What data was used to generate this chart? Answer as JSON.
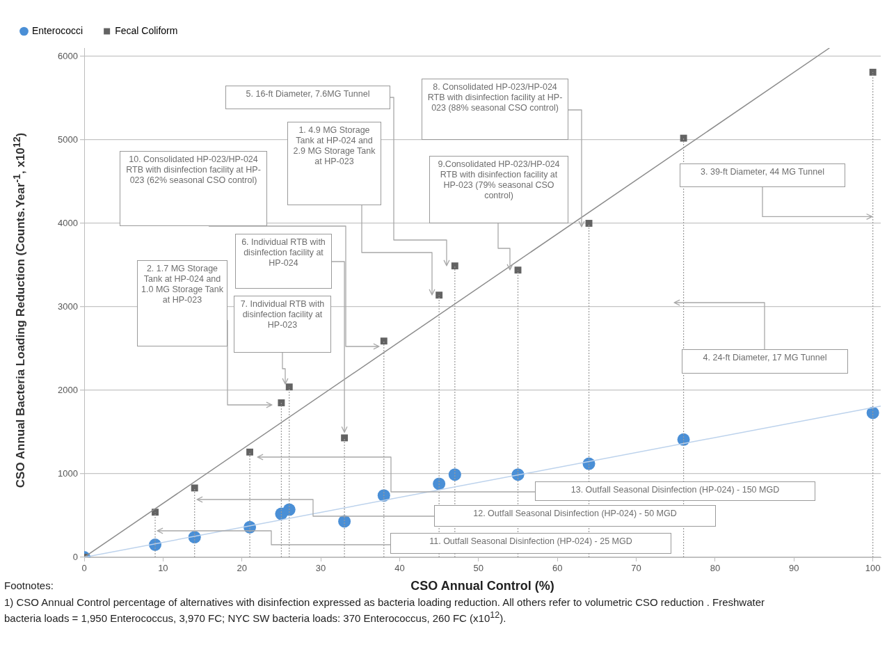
{
  "chart_data": {
    "type": "scatter",
    "xlabel": "CSO Annual Control (%)",
    "ylabel": "CSO Annual Bacteria Loading Reduction (Counts.Year$^{-1}$, x10$^{12}$)",
    "x": [
      0,
      9,
      14,
      21,
      25,
      26,
      33,
      38,
      45,
      47,
      55,
      64,
      76,
      100
    ],
    "series": [
      {
        "name": "Enterococci",
        "color": "#4a8fd6",
        "marker": "circle",
        "values": [
          0,
          150,
          240,
          360,
          520,
          570,
          430,
          740,
          880,
          990,
          990,
          1120,
          1410,
          1730
        ]
      },
      {
        "name": "Fecal Coliform",
        "color": "#636363",
        "marker": "square",
        "values": [
          0,
          540,
          830,
          1260,
          1850,
          2040,
          1430,
          2590,
          3140,
          3490,
          3440,
          4000,
          5020,
          5810
        ]
      },
      {
        "type": "line",
        "color": "#bcd2ec",
        "marker": "none",
        "x": [
          0,
          101
        ],
        "values": [
          0,
          1810
        ]
      },
      {
        "type": "line",
        "color": "#8c8c8c",
        "marker": "none",
        "x": [
          0,
          94.5
        ],
        "values": [
          0,
          6100
        ]
      },
      {
        "type": "line",
        "color": "#9a9a9a",
        "marker": "none",
        "line_style": "dotted",
        "x": [
          9,
          9
        ],
        "values": [
          0,
          540
        ]
      },
      {
        "type": "line",
        "color": "#9a9a9a",
        "marker": "none",
        "line_style": "dotted",
        "x": [
          14,
          14
        ],
        "values": [
          0,
          830
        ]
      },
      {
        "type": "line",
        "color": "#9a9a9a",
        "marker": "none",
        "line_style": "dotted",
        "x": [
          21,
          21
        ],
        "values": [
          0,
          1260
        ]
      },
      {
        "type": "line",
        "color": "#9a9a9a",
        "marker": "none",
        "line_style": "dotted",
        "x": [
          25,
          25
        ],
        "values": [
          0,
          1850
        ]
      },
      {
        "type": "line",
        "color": "#9a9a9a",
        "marker": "none",
        "line_style": "dotted",
        "x": [
          26,
          26
        ],
        "values": [
          0,
          2040
        ]
      },
      {
        "type": "line",
        "color": "#9a9a9a",
        "marker": "none",
        "line_style": "dotted",
        "x": [
          33,
          33
        ],
        "values": [
          0,
          1430
        ]
      },
      {
        "type": "line",
        "color": "#9a9a9a",
        "marker": "none",
        "line_style": "dotted",
        "x": [
          38,
          38
        ],
        "values": [
          0,
          2590
        ]
      },
      {
        "type": "line",
        "color": "#9a9a9a",
        "marker": "none",
        "line_style": "dotted",
        "x": [
          45,
          45
        ],
        "values": [
          0,
          3140
        ]
      },
      {
        "type": "line",
        "color": "#9a9a9a",
        "marker": "none",
        "line_style": "dotted",
        "x": [
          47,
          47
        ],
        "values": [
          0,
          3490
        ]
      },
      {
        "type": "line",
        "color": "#9a9a9a",
        "marker": "none",
        "line_style": "dotted",
        "x": [
          55,
          55
        ],
        "values": [
          0,
          3440
        ]
      },
      {
        "type": "line",
        "color": "#9a9a9a",
        "marker": "none",
        "line_style": "dotted",
        "x": [
          64,
          64
        ],
        "values": [
          0,
          4000
        ]
      },
      {
        "type": "line",
        "color": "#9a9a9a",
        "marker": "none",
        "line_style": "dotted",
        "x": [
          76,
          76
        ],
        "values": [
          0,
          5020
        ]
      },
      {
        "type": "line",
        "color": "#9a9a9a",
        "marker": "none",
        "line_style": "dotted",
        "x": [
          100,
          100
        ],
        "values": [
          0,
          5810
        ]
      }
    ],
    "xlim": [
      0,
      101
    ],
    "xticks": [
      0,
      10,
      20,
      30,
      40,
      50,
      60,
      70,
      80,
      90,
      100
    ],
    "ylim": [
      0,
      6100
    ],
    "yticks": [
      0,
      1000,
      2000,
      3000,
      4000,
      5000,
      6000
    ],
    "grid": "y",
    "legend": "top left",
    "annotations": [
      "1. 4.9 MG Storage Tank at HP-024 and 2.9 MG Storage Tank at HP-023",
      "2. 1.7 MG Storage Tank at HP-024 and 1.0 MG Storage Tank at HP-023",
      {
        "text": "3. 39-ft Diameter, 44 MG Tunnel",
        "x": 100,
        "y": 4080
      },
      "4. 24-ft Diameter, 17 MG Tunnel",
      "5. 16-ft Diameter, 7.6MG Tunnel",
      {
        "text": "6. Individual RTB with disinfection facility at HP-024",
        "x": 33,
        "y": 1430
      },
      "7.  Individual RTB with disinfection facility at HP-023",
      "8. Consolidated HP-023/HP-024 RTB with disinfection facility at HP-023 (88% seasonal CSO control)",
      "9.Consolidated HP-023/HP-024 RTB with disinfection facility at HP-023 (79% seasonal CSO control)",
      "10. Consolidated HP-023/HP-024 RTB with disinfection facility at HP-023 (62% seasonal CSO control)",
      "11.  Outfall Seasonal Disinfection (HP-024) - 25 MGD",
      "12.  Outfall Seasonal Disinfection (HP-024) - 50 MGD",
      "13.  Outfall Seasonal Disinfection (HP-024) - 150 MGD",
      "Footnotes:",
      "1) CSO Annual Control percentage of alternatives with disinfection expressed as  bacteria loading reduction. All others refer to volumetric CSO reduction .  Freshwater  bacteria loads = 1,950 Enterococcus, 3,970 FC;  NYC SW bacteria loads:  370 Enterococcus, 260 FC (x10$^{12}$)."
    ]
  }
}
